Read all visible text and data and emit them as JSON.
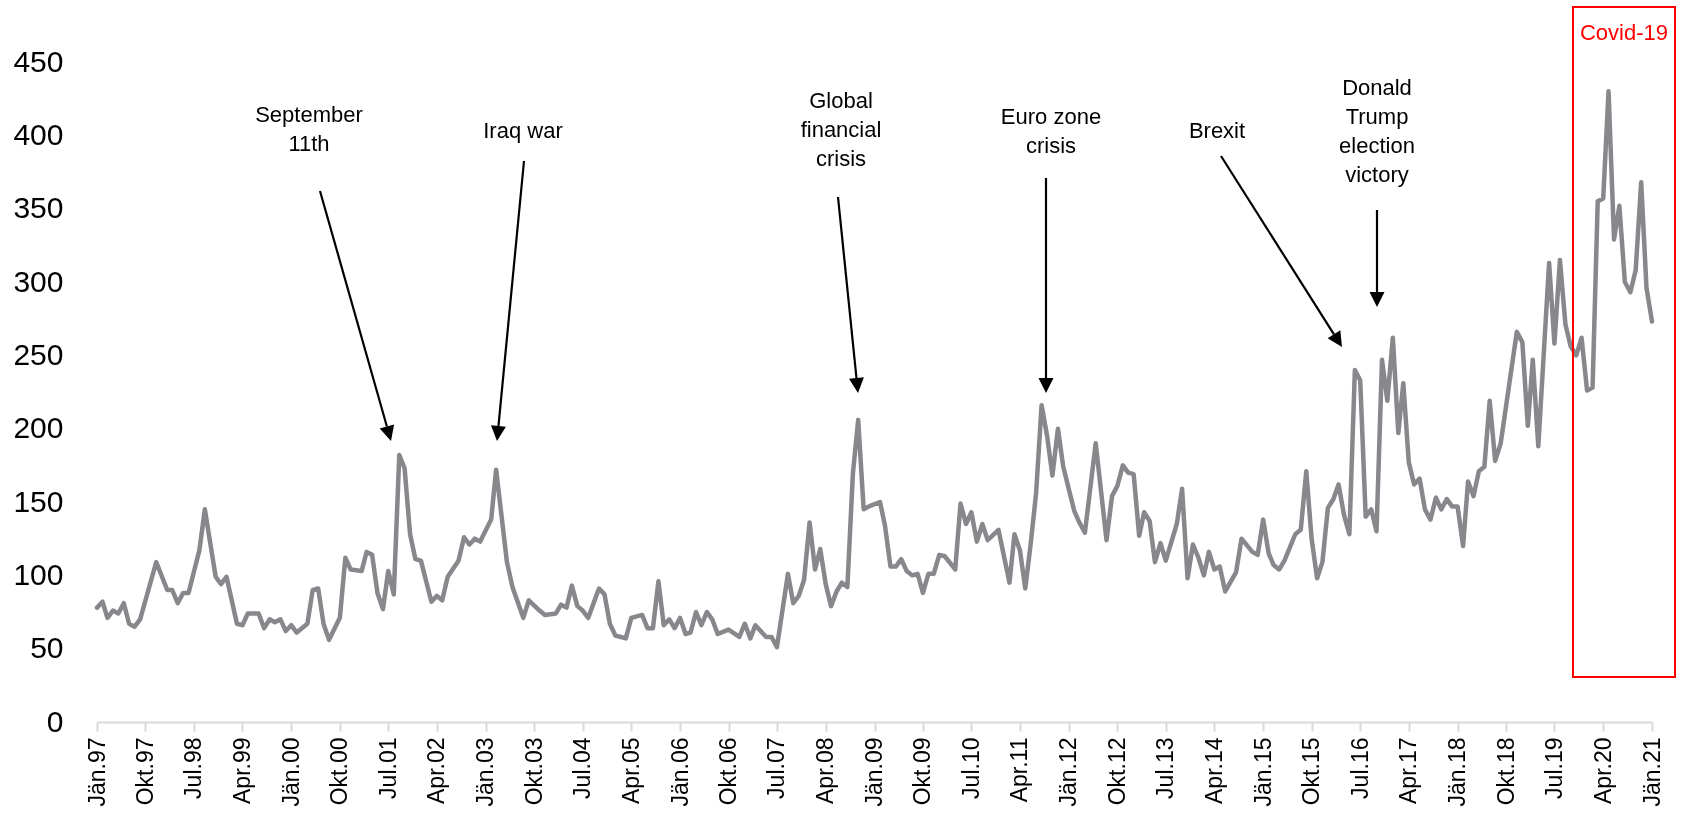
{
  "chart_data": {
    "type": "line",
    "x": [
      "1997-01",
      "1997-02",
      "1997-03",
      "1997-04",
      "1997-05",
      "1997-06",
      "1997-07",
      "1997-08",
      "1997-09",
      "1997-12",
      "1998-02",
      "1998-03",
      "1998-04",
      "1998-05",
      "1998-06",
      "1998-08",
      "1998-09",
      "1998-11",
      "1998-12",
      "1999-01",
      "1999-03",
      "1999-04",
      "1999-05",
      "1999-07",
      "1999-08",
      "1999-09",
      "1999-10",
      "1999-11",
      "1999-12",
      "2000-01",
      "2000-02",
      "2000-04",
      "2000-05",
      "2000-06",
      "2000-07",
      "2000-08",
      "2000-10",
      "2000-11",
      "2000-12",
      "2001-02",
      "2001-03",
      "2001-04",
      "2001-05",
      "2001-06",
      "2001-07",
      "2001-08",
      "2001-09",
      "2001-10",
      "2001-11",
      "2001-12",
      "2002-01",
      "2002-03",
      "2002-04",
      "2002-05",
      "2002-06",
      "2002-08",
      "2002-09",
      "2002-10",
      "2002-11",
      "2002-12",
      "2003-02",
      "2003-03",
      "2003-05",
      "2003-06",
      "2003-08",
      "2003-09",
      "2003-11",
      "2003-12",
      "2004-02",
      "2004-03",
      "2004-04",
      "2004-05",
      "2004-06",
      "2004-07",
      "2004-08",
      "2004-10",
      "2004-11",
      "2004-12",
      "2005-01",
      "2005-03",
      "2005-04",
      "2005-06",
      "2005-07",
      "2005-08",
      "2005-09",
      "2005-10",
      "2005-11",
      "2005-12",
      "2006-01",
      "2006-02",
      "2006-03",
      "2006-04",
      "2006-05",
      "2006-06",
      "2006-07",
      "2006-08",
      "2006-10",
      "2006-12",
      "2007-01",
      "2007-02",
      "2007-03",
      "2007-05",
      "2007-06",
      "2007-07",
      "2007-09",
      "2007-10",
      "2007-11",
      "2007-12",
      "2008-01",
      "2008-02",
      "2008-03",
      "2008-04",
      "2008-05",
      "2008-06",
      "2008-07",
      "2008-08",
      "2008-09",
      "2008-10",
      "2008-11",
      "2008-12",
      "2009-02",
      "2009-03",
      "2009-04",
      "2009-05",
      "2009-06",
      "2009-07",
      "2009-08",
      "2009-09",
      "2009-10",
      "2009-11",
      "2009-12",
      "2010-01",
      "2010-02",
      "2010-04",
      "2010-05",
      "2010-06",
      "2010-07",
      "2010-08",
      "2010-09",
      "2010-10",
      "2010-12",
      "2011-01",
      "2011-02",
      "2011-03",
      "2011-04",
      "2011-05",
      "2011-06",
      "2011-07",
      "2011-08",
      "2011-09",
      "2011-10",
      "2011-11",
      "2011-12",
      "2012-02",
      "2012-03",
      "2012-04",
      "2012-06",
      "2012-08",
      "2012-09",
      "2012-10",
      "2012-11",
      "2012-12",
      "2013-01",
      "2013-02",
      "2013-03",
      "2013-04",
      "2013-05",
      "2013-06",
      "2013-07",
      "2013-09",
      "2013-10",
      "2013-11",
      "2013-12",
      "2014-01",
      "2014-02",
      "2014-03",
      "2014-04",
      "2014-05",
      "2014-06",
      "2014-08",
      "2014-09",
      "2014-11",
      "2014-12",
      "2015-01",
      "2015-02",
      "2015-03",
      "2015-04",
      "2015-05",
      "2015-07",
      "2015-08",
      "2015-09",
      "2015-10",
      "2015-11",
      "2015-12",
      "2016-01",
      "2016-02",
      "2016-03",
      "2016-04",
      "2016-05",
      "2016-06",
      "2016-07",
      "2016-08",
      "2016-09",
      "2016-10",
      "2016-11",
      "2016-12",
      "2017-01",
      "2017-02",
      "2017-03",
      "2017-04",
      "2017-05",
      "2017-06",
      "2017-07",
      "2017-08",
      "2017-09",
      "2017-10",
      "2017-11",
      "2017-12",
      "2018-01",
      "2018-02",
      "2018-03",
      "2018-04",
      "2018-05",
      "2018-06",
      "2018-07",
      "2018-08",
      "2018-09",
      "2018-12",
      "2019-01",
      "2019-02",
      "2019-03",
      "2019-04",
      "2019-06",
      "2019-07",
      "2019-08",
      "2019-09",
      "2019-10",
      "2019-11",
      "2019-12",
      "2020-01",
      "2020-02",
      "2020-03",
      "2020-04",
      "2020-05",
      "2020-06",
      "2020-07",
      "2020-08",
      "2020-09",
      "2020-10",
      "2020-11",
      "2020-12",
      "2021-01"
    ],
    "values": [
      78,
      82,
      71,
      76,
      74,
      81,
      67,
      65,
      70,
      109,
      90,
      90,
      81,
      88,
      88,
      117,
      145,
      99,
      94,
      99,
      67,
      66,
      74,
      74,
      64,
      70,
      68,
      70,
      62,
      66,
      61,
      67,
      90,
      91,
      67,
      56,
      71,
      112,
      104,
      103,
      116,
      114,
      88,
      77,
      103,
      87,
      182,
      173,
      128,
      111,
      110,
      82,
      86,
      83,
      99,
      110,
      126,
      121,
      125,
      123,
      138,
      172,
      109,
      92,
      71,
      83,
      76,
      73,
      74,
      80,
      78,
      93,
      79,
      76,
      71,
      91,
      87,
      67,
      59,
      57,
      71,
      73,
      64,
      64,
      96,
      66,
      70,
      64,
      71,
      60,
      61,
      75,
      66,
      75,
      70,
      60,
      63,
      58,
      67,
      57,
      66,
      58,
      58,
      51,
      101,
      81,
      86,
      97,
      136,
      104,
      118,
      94,
      79,
      89,
      95,
      92,
      169,
      206,
      145,
      147,
      150,
      134,
      106,
      106,
      111,
      103,
      100,
      101,
      88,
      101,
      101,
      114,
      113,
      104,
      149,
      135,
      143,
      123,
      135,
      124,
      131,
      113,
      95,
      128,
      117,
      91,
      122,
      156,
      216,
      195,
      168,
      200,
      174,
      144,
      136,
      129,
      190,
      124,
      154,
      161,
      175,
      170,
      169,
      127,
      143,
      137,
      109,
      122,
      110,
      135,
      159,
      98,
      121,
      112,
      100,
      116,
      104,
      106,
      89,
      102,
      125,
      116,
      114,
      138,
      115,
      107,
      104,
      110,
      128,
      131,
      171,
      125,
      98,
      109,
      146,
      152,
      162,
      141,
      128,
      240,
      233,
      140,
      145,
      130,
      247,
      219,
      262,
      197,
      231,
      177,
      162,
      166,
      145,
      138,
      153,
      145,
      152,
      147,
      147,
      120,
      164,
      154,
      171,
      174,
      219,
      178,
      190,
      266,
      259,
      202,
      247,
      188,
      313,
      258,
      315,
      271,
      256,
      250,
      262,
      226,
      228,
      355,
      357,
      430,
      329,
      352,
      300,
      293,
      308,
      368,
      296,
      273
    ],
    "color": "#88878c",
    "xlim": [
      "1997-01",
      "2021-01"
    ],
    "xticks": [
      {
        "value": "1997-01",
        "label": "Jän.97"
      },
      {
        "value": "1997-10",
        "label": "Okt.97"
      },
      {
        "value": "1998-07",
        "label": "Jul.98"
      },
      {
        "value": "1999-04",
        "label": "Apr.99"
      },
      {
        "value": "2000-01",
        "label": "Jän.00"
      },
      {
        "value": "2000-10",
        "label": "Okt.00"
      },
      {
        "value": "2001-07",
        "label": "Jul.01"
      },
      {
        "value": "2002-04",
        "label": "Apr.02"
      },
      {
        "value": "2003-01",
        "label": "Jän.03"
      },
      {
        "value": "2003-10",
        "label": "Okt.03"
      },
      {
        "value": "2004-07",
        "label": "Jul.04"
      },
      {
        "value": "2005-04",
        "label": "Apr.05"
      },
      {
        "value": "2006-01",
        "label": "Jän.06"
      },
      {
        "value": "2006-10",
        "label": "Okt.06"
      },
      {
        "value": "2007-07",
        "label": "Jul.07"
      },
      {
        "value": "2008-04",
        "label": "Apr.08"
      },
      {
        "value": "2009-01",
        "label": "Jän.09"
      },
      {
        "value": "2009-10",
        "label": "Okt.09"
      },
      {
        "value": "2010-07",
        "label": "Jul.10"
      },
      {
        "value": "2011-04",
        "label": "Apr.11"
      },
      {
        "value": "2012-01",
        "label": "Jän.12"
      },
      {
        "value": "2012-10",
        "label": "Okt.12"
      },
      {
        "value": "2013-07",
        "label": "Jul.13"
      },
      {
        "value": "2014-04",
        "label": "Apr.14"
      },
      {
        "value": "2015-01",
        "label": "Jän.15"
      },
      {
        "value": "2015-10",
        "label": "Okt.15"
      },
      {
        "value": "2016-07",
        "label": "Jul.16"
      },
      {
        "value": "2017-04",
        "label": "Apr.17"
      },
      {
        "value": "2018-01",
        "label": "Jän.18"
      },
      {
        "value": "2018-10",
        "label": "Okt.18"
      },
      {
        "value": "2019-07",
        "label": "Jul.19"
      },
      {
        "value": "2020-04",
        "label": "Apr.20"
      },
      {
        "value": "2021-01",
        "label": "Jän.21"
      }
    ],
    "ylim": [
      0,
      450
    ],
    "yticks": [
      0,
      50,
      100,
      150,
      200,
      250,
      300,
      350,
      400,
      450
    ],
    "annotations": [
      "September\n11th",
      "Iraq war",
      "Global\nfinancial\ncrisis",
      "Euro zone\ncrisis",
      "Brexit",
      "Donald\nTrump\nelection\nvictory",
      "Covid-19"
    ]
  }
}
